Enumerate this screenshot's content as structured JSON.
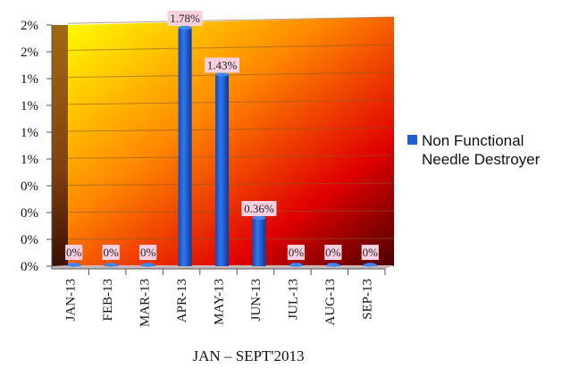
{
  "chart_data": {
    "type": "bar",
    "categories": [
      "JAN-13",
      "FEB-13",
      "MAR-13",
      "APR-13",
      "MAY-13",
      "JUN-13",
      "JUL-13",
      "AUG-13",
      "SEP-13"
    ],
    "series": [
      {
        "name": "Non Functional Needle Destroyer",
        "values": [
          0,
          0,
          0,
          1.78,
          1.43,
          0.36,
          0,
          0,
          0
        ],
        "data_labels": [
          "0%",
          "0%",
          "0%",
          "1.78%",
          "1.43%",
          "0.36%",
          "0%",
          "0%",
          "0%"
        ],
        "color": "#1f5fd0"
      }
    ],
    "y_tick_labels": [
      "0%",
      "0%",
      "0%",
      "0%",
      "1%",
      "1%",
      "1%",
      "1%",
      "2%",
      "2%"
    ],
    "ylim": [
      0,
      1.8
    ],
    "ylabel": "",
    "xlabel": "JAN – SEPT'2013",
    "title": "",
    "grid": true,
    "legend_position": "right",
    "plot_background": [
      "#ffff00",
      "#ff8800",
      "#e00000",
      "#4a0000"
    ],
    "data_label_background": "#f8d0e0"
  }
}
